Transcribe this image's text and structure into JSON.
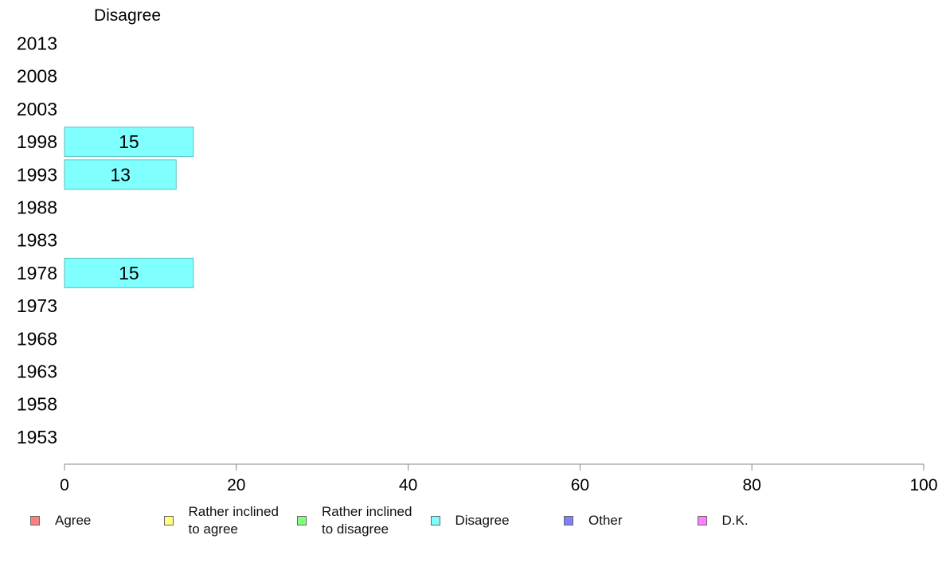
{
  "chart_data": {
    "type": "bar",
    "orientation": "horizontal",
    "title": "Disagree",
    "categories": [
      "2013",
      "2008",
      "2003",
      "1998",
      "1993",
      "1988",
      "1983",
      "1978",
      "1973",
      "1968",
      "1963",
      "1958",
      "1953"
    ],
    "series": [
      {
        "name": "Disagree",
        "values": [
          null,
          null,
          null,
          15,
          13,
          null,
          null,
          15,
          null,
          null,
          null,
          null,
          null
        ]
      }
    ],
    "data_labels": [
      null,
      null,
      null,
      "15",
      "13",
      null,
      null,
      "15",
      null,
      null,
      null,
      null,
      null
    ],
    "xlim": [
      0,
      100
    ],
    "xticks": [
      "0",
      "20",
      "40",
      "60",
      "80",
      "100"
    ],
    "xlabel": "",
    "ylabel": "",
    "grid": false,
    "legend_position": "bottom",
    "colors": {
      "bar_fill": "#80ffff",
      "bar_stroke": "#5fbfbf",
      "axis": "#888888"
    }
  },
  "legend": {
    "items": [
      {
        "label": "Agree",
        "color": "#ff8080"
      },
      {
        "label": "Rather inclined\nto agree",
        "color": "#ffff80"
      },
      {
        "label": "Rather inclined\nto disagree",
        "color": "#80ff80"
      },
      {
        "label": "Disagree",
        "color": "#80ffff"
      },
      {
        "label": "Other",
        "color": "#8080ff"
      },
      {
        "label": "D.K.",
        "color": "#ff80ff"
      }
    ]
  }
}
